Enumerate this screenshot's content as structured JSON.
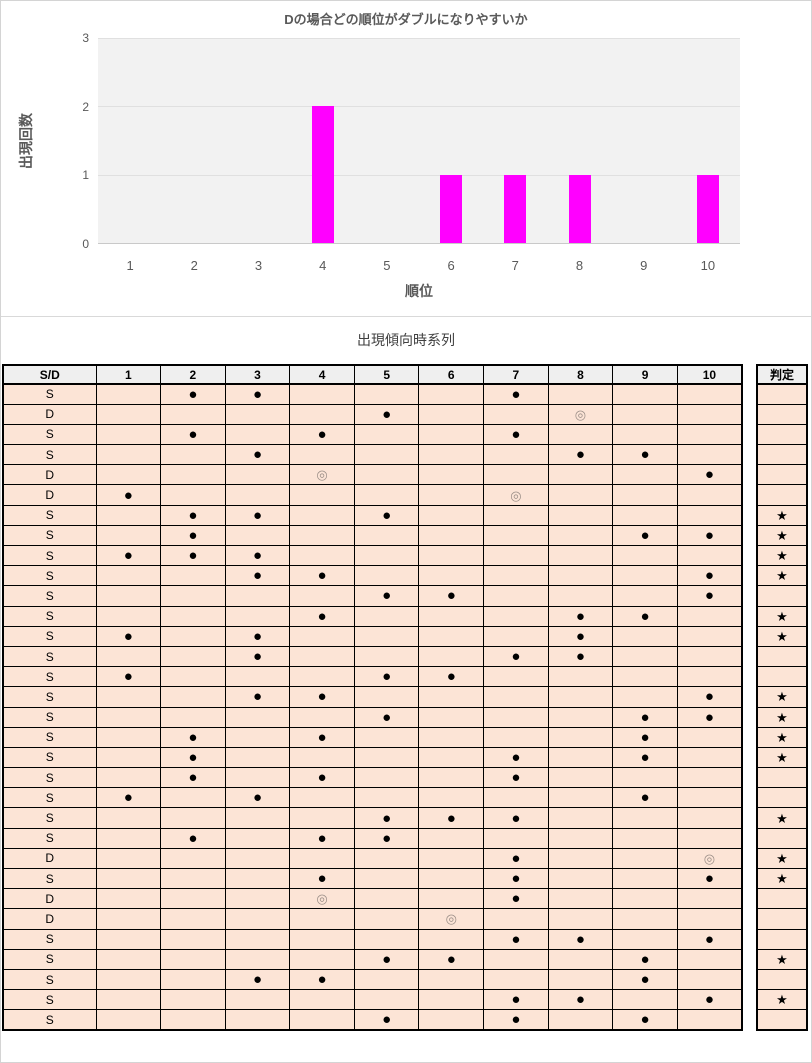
{
  "chart": {
    "title": "Dの場合どの順位がダブルになりやすいか",
    "ylabel": "出現回数",
    "xlabel": "順位",
    "yticks": [
      "3",
      "2",
      "1",
      "0"
    ]
  },
  "chart_data": {
    "type": "bar",
    "title": "Dの場合どの順位がダブルになりやすいか",
    "xlabel": "順位",
    "ylabel": "出現回数",
    "categories": [
      "1",
      "2",
      "3",
      "4",
      "5",
      "6",
      "7",
      "8",
      "9",
      "10"
    ],
    "values": [
      0,
      0,
      0,
      2,
      0,
      1,
      1,
      1,
      0,
      1
    ],
    "ylim": [
      0,
      3
    ],
    "yticks": [
      0,
      1,
      2,
      3
    ],
    "grid": true,
    "legend": false,
    "bar_color": "#FF00FF"
  },
  "table": {
    "title": "出現傾向時系列",
    "header": [
      "S/D",
      "1",
      "2",
      "3",
      "4",
      "5",
      "6",
      "7",
      "8",
      "9",
      "10"
    ],
    "judge_header": "判定",
    "dot_glyph": "●",
    "double_circle_glyph": "◎",
    "star_glyph": "★",
    "rows": [
      {
        "sd": "S",
        "dot": [
          2,
          3,
          7
        ],
        "dbl": [],
        "star": false
      },
      {
        "sd": "D",
        "dot": [
          5
        ],
        "dbl": [
          8
        ],
        "star": false
      },
      {
        "sd": "S",
        "dot": [
          2,
          4,
          7
        ],
        "dbl": [],
        "star": false
      },
      {
        "sd": "S",
        "dot": [
          3,
          8,
          9
        ],
        "dbl": [],
        "star": false
      },
      {
        "sd": "D",
        "dot": [
          10
        ],
        "dbl": [
          4
        ],
        "star": false
      },
      {
        "sd": "D",
        "dot": [
          1
        ],
        "dbl": [
          7
        ],
        "star": false
      },
      {
        "sd": "S",
        "dot": [
          2,
          3,
          5
        ],
        "dbl": [],
        "star": true
      },
      {
        "sd": "S",
        "dot": [
          2,
          9,
          10
        ],
        "dbl": [],
        "star": true
      },
      {
        "sd": "S",
        "dot": [
          1,
          2,
          3
        ],
        "dbl": [],
        "star": true
      },
      {
        "sd": "S",
        "dot": [
          3,
          4,
          10
        ],
        "dbl": [],
        "star": true
      },
      {
        "sd": "S",
        "dot": [
          5,
          6,
          10
        ],
        "dbl": [],
        "star": false
      },
      {
        "sd": "S",
        "dot": [
          4,
          8,
          9
        ],
        "dbl": [],
        "star": true
      },
      {
        "sd": "S",
        "dot": [
          1,
          3,
          8
        ],
        "dbl": [],
        "star": true
      },
      {
        "sd": "S",
        "dot": [
          3,
          7,
          8
        ],
        "dbl": [],
        "star": false
      },
      {
        "sd": "S",
        "dot": [
          1,
          5,
          6
        ],
        "dbl": [],
        "star": false
      },
      {
        "sd": "S",
        "dot": [
          3,
          4,
          10
        ],
        "dbl": [],
        "star": true
      },
      {
        "sd": "S",
        "dot": [
          5,
          9,
          10
        ],
        "dbl": [],
        "star": true
      },
      {
        "sd": "S",
        "dot": [
          2,
          4,
          9
        ],
        "dbl": [],
        "star": true
      },
      {
        "sd": "S",
        "dot": [
          2,
          7,
          9
        ],
        "dbl": [],
        "star": true
      },
      {
        "sd": "S",
        "dot": [
          2,
          4,
          7
        ],
        "dbl": [],
        "star": false
      },
      {
        "sd": "S",
        "dot": [
          1,
          3,
          9
        ],
        "dbl": [],
        "star": false
      },
      {
        "sd": "S",
        "dot": [
          5,
          6,
          7
        ],
        "dbl": [],
        "star": true
      },
      {
        "sd": "S",
        "dot": [
          2,
          4,
          5
        ],
        "dbl": [],
        "star": false
      },
      {
        "sd": "D",
        "dot": [
          7
        ],
        "dbl": [
          10
        ],
        "star": true
      },
      {
        "sd": "S",
        "dot": [
          4,
          7,
          10
        ],
        "dbl": [],
        "star": true
      },
      {
        "sd": "D",
        "dot": [
          7
        ],
        "dbl": [
          4
        ],
        "star": false
      },
      {
        "sd": "D",
        "dot": [],
        "dbl": [
          6
        ],
        "star": false
      },
      {
        "sd": "S",
        "dot": [
          7,
          8,
          10
        ],
        "dbl": [],
        "star": false
      },
      {
        "sd": "S",
        "dot": [
          5,
          6,
          9
        ],
        "dbl": [],
        "star": true
      },
      {
        "sd": "S",
        "dot": [
          3,
          4,
          9
        ],
        "dbl": [],
        "star": false
      },
      {
        "sd": "S",
        "dot": [
          7,
          8,
          10
        ],
        "dbl": [],
        "star": true
      },
      {
        "sd": "S",
        "dot": [
          5,
          7,
          9
        ],
        "dbl": [],
        "star": false
      }
    ]
  },
  "colors": {
    "bar": "#FF00FF",
    "cell_bg": "#FCE4D6",
    "header_bg": "#EFEFEF",
    "plot_bg": "#F2F2F2",
    "double_circle": "#9C8F88",
    "chart_text": "#595959",
    "border": "#000000"
  }
}
